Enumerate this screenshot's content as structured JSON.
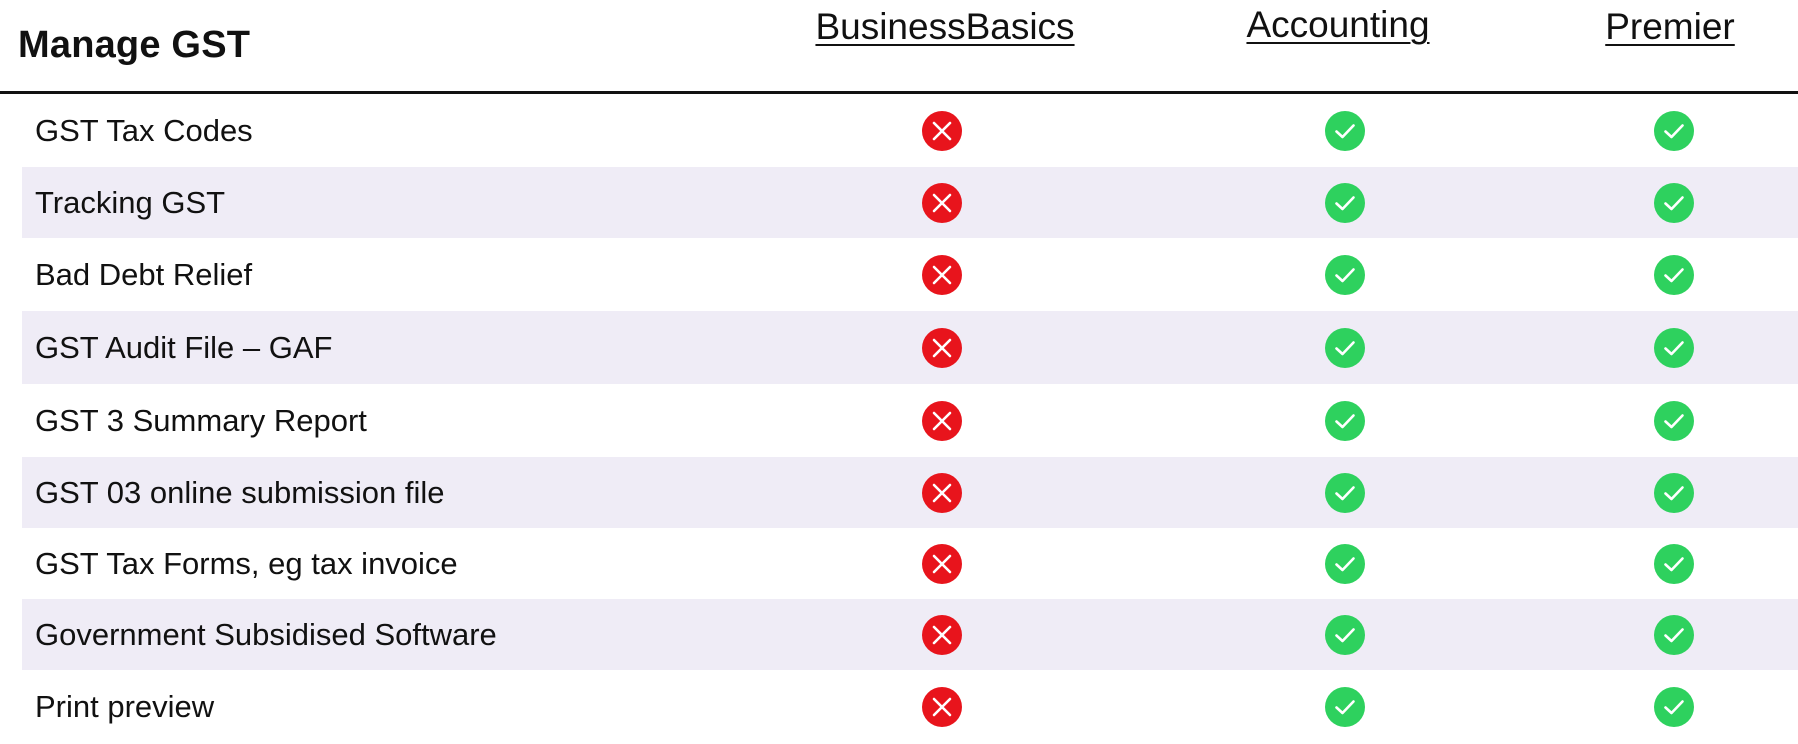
{
  "section_title": "Manage GST",
  "plans": [
    "BusinessBasics",
    "Accounting",
    "Premier"
  ],
  "colors": {
    "cross": "#e8141c",
    "check": "#2ed15e",
    "row_shade": "#efecf6",
    "rule": "#111111"
  },
  "icons": {
    "unsupported": "cross-circle-icon",
    "supported": "check-circle-icon"
  },
  "features": [
    {
      "label": "GST Tax Codes",
      "availability": [
        false,
        true,
        true
      ]
    },
    {
      "label": "Tracking GST",
      "availability": [
        false,
        true,
        true
      ]
    },
    {
      "label": "Bad Debt Relief",
      "availability": [
        false,
        true,
        true
      ]
    },
    {
      "label": "GST Audit File – GAF",
      "availability": [
        false,
        true,
        true
      ]
    },
    {
      "label": "GST 3 Summary Report",
      "availability": [
        false,
        true,
        true
      ]
    },
    {
      "label": "GST 03 online submission file",
      "availability": [
        false,
        true,
        true
      ]
    },
    {
      "label": "GST Tax Forms, eg tax invoice",
      "availability": [
        false,
        true,
        true
      ]
    },
    {
      "label": "Government Subsidised Software",
      "availability": [
        false,
        true,
        true
      ]
    },
    {
      "label": "Print preview",
      "availability": [
        false,
        true,
        true
      ]
    }
  ]
}
